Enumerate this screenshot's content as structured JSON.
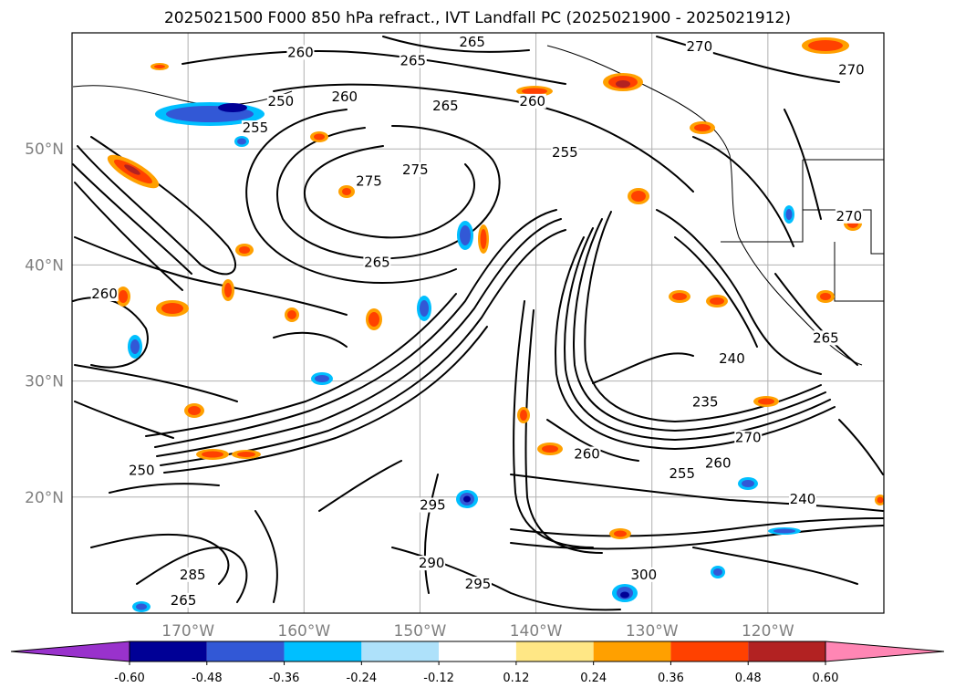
{
  "title": "2025021500 F000 850 hPa refract., IVT Landfall PC (2025021900 - 2025021912)",
  "map": {
    "extent": {
      "lon_min": -180,
      "lon_max": -110,
      "lat_min": 10,
      "lat_max": 60
    },
    "lat_ticks": [
      {
        "value": 20,
        "label": "20°N"
      },
      {
        "value": 30,
        "label": "30°N"
      },
      {
        "value": 40,
        "label": "40°N"
      },
      {
        "value": 50,
        "label": "50°N"
      }
    ],
    "lon_ticks": [
      {
        "value": -170,
        "label": "170°W"
      },
      {
        "value": -160,
        "label": "160°W"
      },
      {
        "value": -150,
        "label": "150°W"
      },
      {
        "value": -140,
        "label": "140°W"
      },
      {
        "value": -130,
        "label": "130°W"
      },
      {
        "value": -120,
        "label": "120°W"
      }
    ],
    "gridlines": true,
    "contour_labels": [
      {
        "text": "265",
        "lon": -145.5,
        "lat": 58.9
      },
      {
        "text": "270",
        "lon": -125.9,
        "lat": 58.5
      },
      {
        "text": "260",
        "lon": -160.3,
        "lat": 58.0
      },
      {
        "text": "265",
        "lon": -150.6,
        "lat": 57.3
      },
      {
        "text": "270",
        "lon": -112.8,
        "lat": 56.5
      },
      {
        "text": "250",
        "lon": -162.0,
        "lat": 53.8
      },
      {
        "text": "260",
        "lon": -156.5,
        "lat": 54.2
      },
      {
        "text": "265",
        "lon": -147.8,
        "lat": 53.4
      },
      {
        "text": "260",
        "lon": -140.3,
        "lat": 53.8
      },
      {
        "text": "255",
        "lon": -164.2,
        "lat": 51.5
      },
      {
        "text": "255",
        "lon": -137.5,
        "lat": 49.4
      },
      {
        "text": "275",
        "lon": -154.4,
        "lat": 46.9
      },
      {
        "text": "275",
        "lon": -150.4,
        "lat": 47.9
      },
      {
        "text": "270",
        "lon": -113.0,
        "lat": 43.9
      },
      {
        "text": "265",
        "lon": -153.7,
        "lat": 39.9
      },
      {
        "text": "260",
        "lon": -177.2,
        "lat": 37.2
      },
      {
        "text": "265",
        "lon": -115.0,
        "lat": 33.4
      },
      {
        "text": "240",
        "lon": -123.1,
        "lat": 31.6
      },
      {
        "text": "235",
        "lon": -125.4,
        "lat": 27.9
      },
      {
        "text": "270",
        "lon": -121.7,
        "lat": 24.8
      },
      {
        "text": "260",
        "lon": -135.6,
        "lat": 23.4
      },
      {
        "text": "260",
        "lon": -124.3,
        "lat": 22.6
      },
      {
        "text": "255",
        "lon": -127.4,
        "lat": 21.7
      },
      {
        "text": "240",
        "lon": -117.0,
        "lat": 19.5
      },
      {
        "text": "250",
        "lon": -174.0,
        "lat": 22.0
      },
      {
        "text": "295",
        "lon": -148.9,
        "lat": 19.0
      },
      {
        "text": "295",
        "lon": -145.0,
        "lat": 12.2
      },
      {
        "text": "300",
        "lon": -130.7,
        "lat": 13.0
      },
      {
        "text": "265",
        "lon": -170.4,
        "lat": 10.8
      },
      {
        "text": "285",
        "lon": -169.6,
        "lat": 13.0
      },
      {
        "text": "290",
        "lon": -149.0,
        "lat": 14.0
      }
    ]
  },
  "colorbar": {
    "ticks": [
      "-0.60",
      "-0.48",
      "-0.36",
      "-0.24",
      "-0.12",
      "0.12",
      "0.24",
      "0.36",
      "0.48",
      "0.60"
    ],
    "under_color": "#9932cc",
    "over_color": "#ff86b4",
    "bin_colors": [
      "#000096",
      "#3258d6",
      "#00bfff",
      "#aee1fa",
      "#ffffff",
      "#ffe785",
      "#ffa000",
      "#ff4100",
      "#b22222"
    ]
  }
}
